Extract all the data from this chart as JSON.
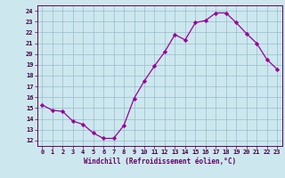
{
  "x": [
    0,
    1,
    2,
    3,
    4,
    5,
    6,
    7,
    8,
    9,
    10,
    11,
    12,
    13,
    14,
    15,
    16,
    17,
    18,
    19,
    20,
    21,
    22,
    23
  ],
  "y": [
    15.3,
    14.8,
    14.7,
    13.8,
    13.5,
    12.7,
    12.2,
    12.2,
    13.4,
    15.9,
    17.5,
    18.9,
    20.2,
    21.8,
    21.3,
    22.9,
    23.1,
    23.8,
    23.8,
    22.9,
    21.9,
    21.0,
    19.5,
    18.6
  ],
  "xlim": [
    -0.5,
    23.5
  ],
  "ylim": [
    11.5,
    24.5
  ],
  "yticks": [
    12,
    13,
    14,
    15,
    16,
    17,
    18,
    19,
    20,
    21,
    22,
    23,
    24
  ],
  "xticks": [
    0,
    1,
    2,
    3,
    4,
    5,
    6,
    7,
    8,
    9,
    10,
    11,
    12,
    13,
    14,
    15,
    16,
    17,
    18,
    19,
    20,
    21,
    22,
    23
  ],
  "xlabel": "Windchill (Refroidissement éolien,°C)",
  "line_color": "#990099",
  "marker_color": "#990099",
  "bg_color": "#cce8ee",
  "grid_color": "#99bbcc",
  "axis_color": "#660066",
  "tick_color": "#440044"
}
